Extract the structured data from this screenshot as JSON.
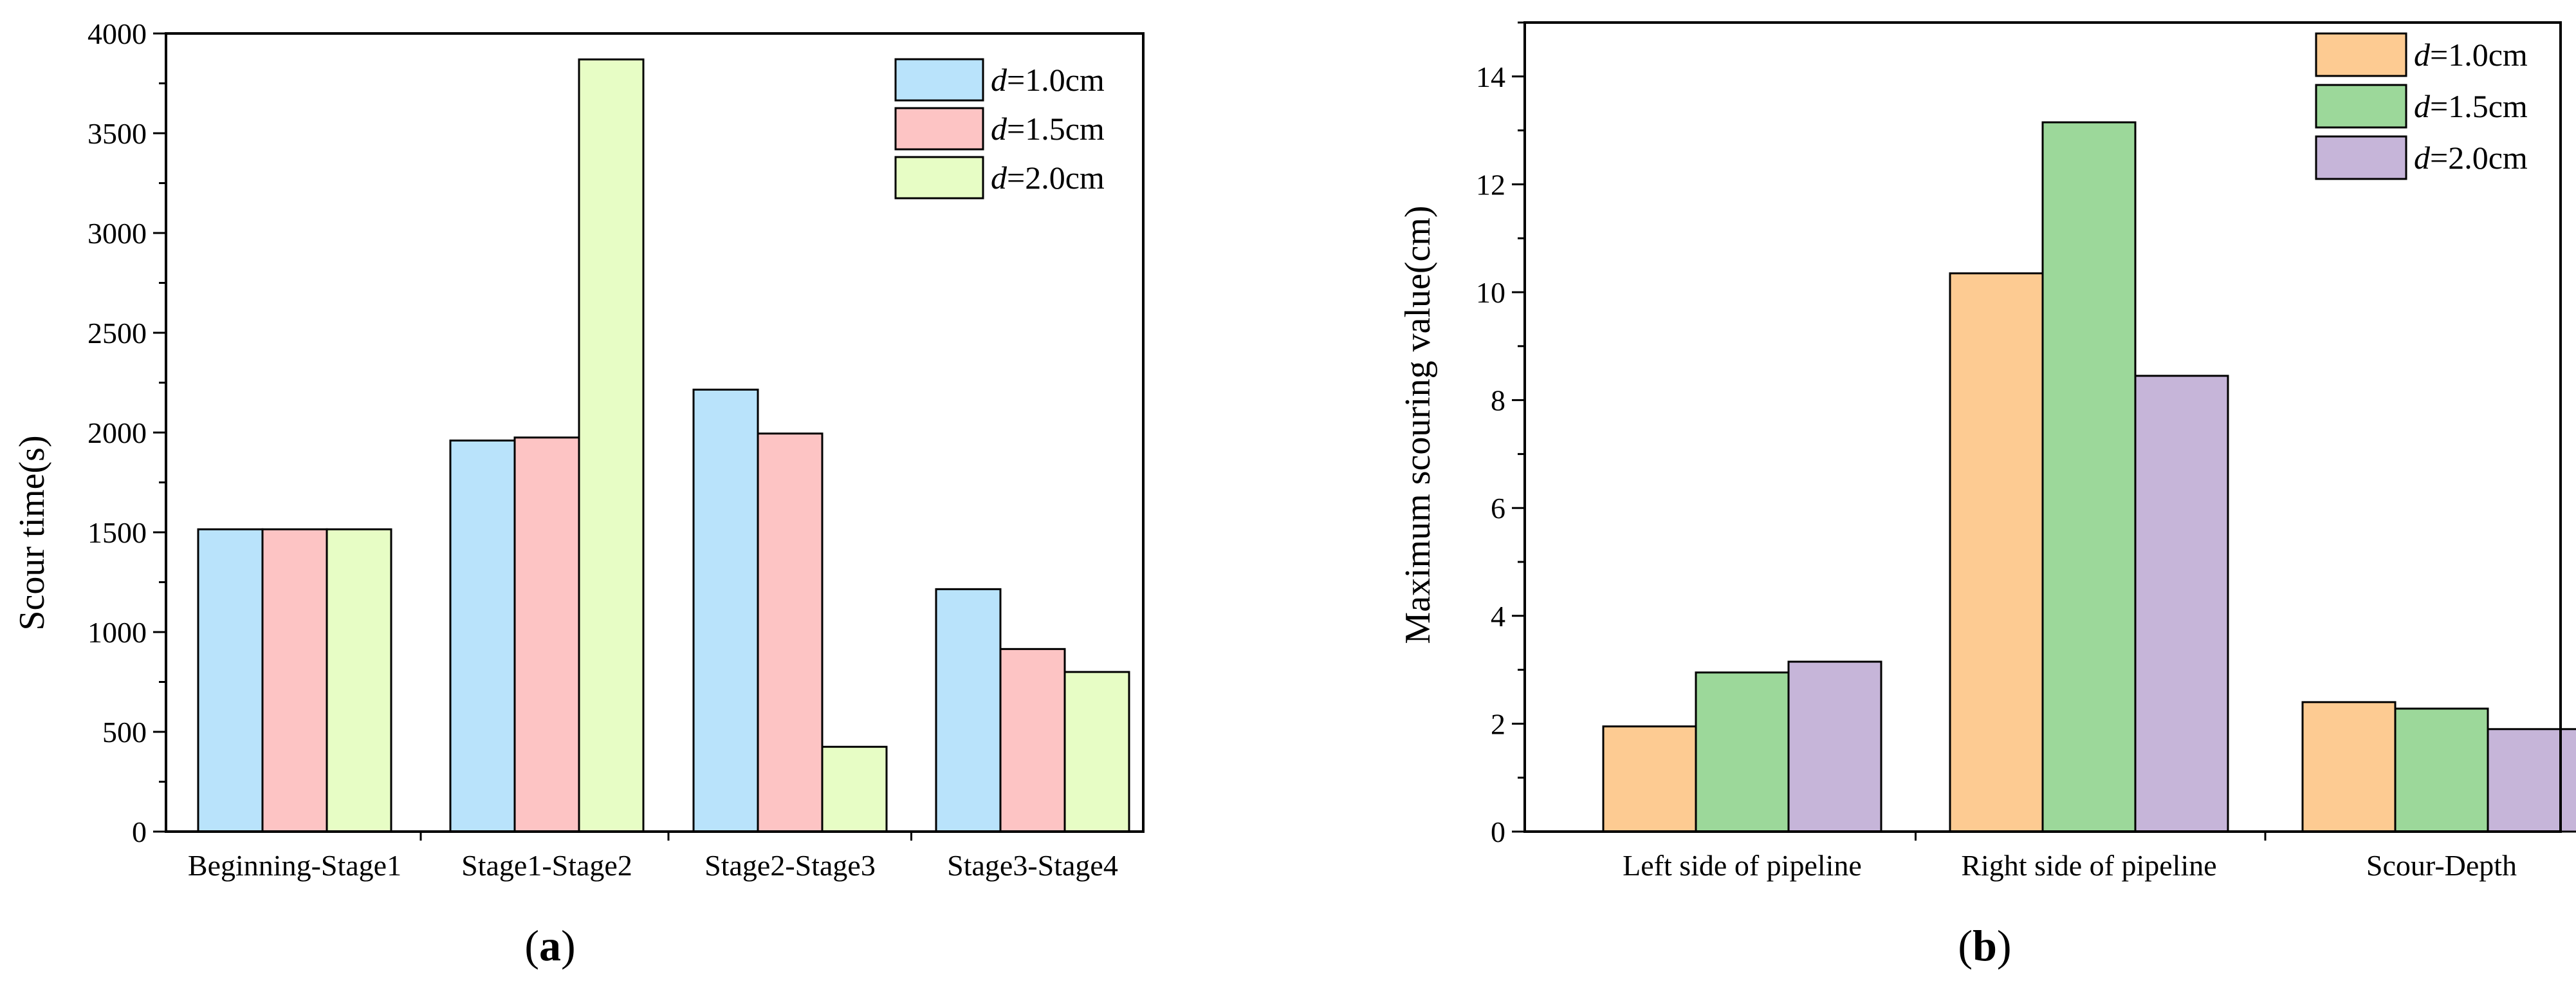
{
  "chart_data": [
    {
      "type": "bar",
      "panel_label": "a",
      "ylabel": "Scour time(s)",
      "xlabel": "",
      "categories": [
        "Beginning-Stage1",
        "Stage1-Stage2",
        "Stage2-Stage3",
        "Stage3-Stage4"
      ],
      "series": [
        {
          "name_var": "d",
          "name_rest": "=1.0cm",
          "color": "#B9E3FB",
          "values": [
            1515,
            1960,
            2215,
            1215
          ]
        },
        {
          "name_var": "d",
          "name_rest": "=1.5cm",
          "color": "#FDC4C4",
          "values": [
            1515,
            1975,
            1995,
            915
          ]
        },
        {
          "name_var": "d",
          "name_rest": "=2.0cm",
          "color": "#E7FDC5",
          "values": [
            1515,
            3870,
            425,
            800
          ]
        }
      ],
      "ylim": [
        0,
        4000
      ],
      "yticks": [
        0,
        500,
        1000,
        1500,
        2000,
        2500,
        3000,
        3500,
        4000
      ],
      "legend_position": "top-right"
    },
    {
      "type": "bar",
      "panel_label": "b",
      "ylabel": "Maximum scouring value(cm)",
      "xlabel": "",
      "categories": [
        "Left side of pipeline",
        "Right side of pipeline",
        "Scour-Depth"
      ],
      "series": [
        {
          "name_var": "d",
          "name_rest": "=1.0cm",
          "color": "#FDCB92",
          "values": [
            1.95,
            10.35,
            2.4
          ]
        },
        {
          "name_var": "d",
          "name_rest": "=1.5cm",
          "color": "#9CD89A",
          "values": [
            2.95,
            13.15,
            2.28
          ]
        },
        {
          "name_var": "d",
          "name_rest": "=2.0cm",
          "color": "#C6B5D9",
          "values": [
            3.15,
            8.45,
            1.9
          ]
        }
      ],
      "ylim": [
        0,
        15
      ],
      "yticks": [
        0,
        2,
        4,
        6,
        8,
        10,
        12,
        14
      ],
      "legend_position": "top-right"
    }
  ]
}
